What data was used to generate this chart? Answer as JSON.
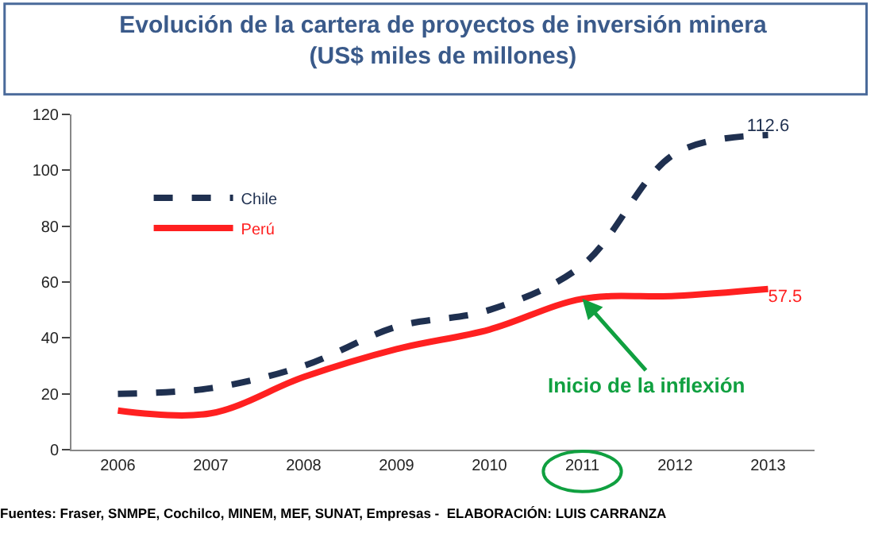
{
  "chart_data": {
    "type": "line",
    "title": "Evolución de la cartera de proyectos de inversión minera",
    "subtitle": "(US$ miles de millones)",
    "categories": [
      "2006",
      "2007",
      "2008",
      "2009",
      "2010",
      "2011",
      "2012",
      "2013"
    ],
    "series": [
      {
        "name": "Chile",
        "color": "#1f3050",
        "line_style": "dashed",
        "values": [
          20,
          22,
          30,
          44,
          50,
          66,
          106,
          112.6
        ],
        "value_labels": [
          null,
          null,
          null,
          null,
          null,
          null,
          null,
          "112.6"
        ]
      },
      {
        "name": "Perú",
        "color": "#ff2020",
        "line_style": "solid",
        "values": [
          14,
          13,
          26,
          36,
          43,
          54,
          55,
          57.5
        ],
        "value_labels": [
          null,
          null,
          null,
          null,
          null,
          null,
          null,
          "57.5"
        ]
      }
    ],
    "ylim": [
      0,
      120
    ],
    "yticks": [
      0,
      20,
      40,
      60,
      80,
      100,
      120
    ],
    "grid": false,
    "legend": "top left",
    "marker": "none",
    "annotations": [
      {
        "text": "Inicio de la inflexión",
        "x": "2011",
        "y": 54
      },
      "Fuentes: Fraser, SNMPE, Cochilco, MINEM, MEF, SUNAT, Empresas -  ELABORACIÓN: LUIS CARRANZA"
    ]
  }
}
